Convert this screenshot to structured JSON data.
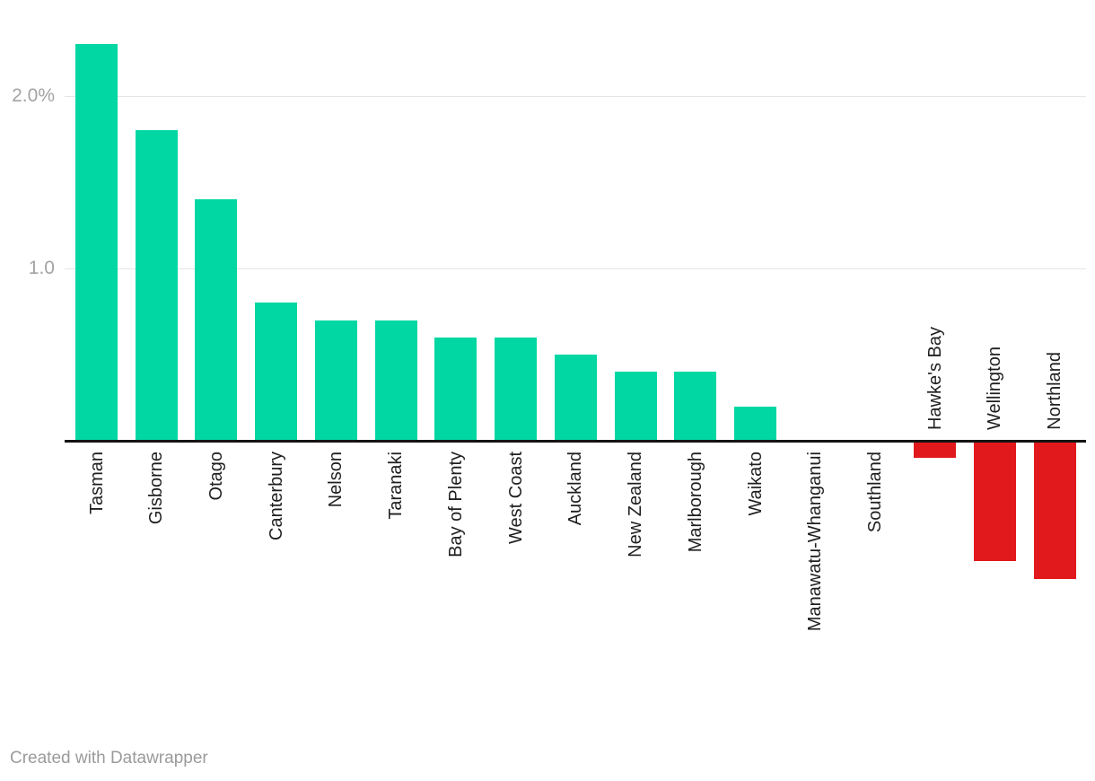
{
  "chart_data": {
    "type": "bar",
    "title": "",
    "categories": [
      "Tasman",
      "Gisborne",
      "Otago",
      "Canterbury",
      "Nelson",
      "Taranaki",
      "Bay of Plenty",
      "West Coast",
      "Auckland",
      "New Zealand",
      "Marlborough",
      "Waikato",
      "Manawatu-Whanganui",
      "Southland",
      "Hawke's Bay",
      "Wellington",
      "Northland"
    ],
    "values": [
      2.3,
      1.8,
      1.4,
      0.8,
      0.7,
      0.7,
      0.6,
      0.6,
      0.5,
      0.4,
      0.4,
      0.2,
      0.0,
      0.0,
      -0.1,
      -0.7,
      -0.8
    ],
    "unit": "%",
    "xlabel": "",
    "ylabel": "",
    "ylim": [
      -0.9,
      2.35
    ],
    "yticks": [
      {
        "value": 2.0,
        "label": "2.0%"
      },
      {
        "value": 1.0,
        "label": "1.0"
      }
    ],
    "grid": true,
    "legend": "none",
    "positive_color": "#00d7a3",
    "negative_color": "#e2191c"
  },
  "colors": {
    "positive_bar": "#00d7a3",
    "negative_bar": "#e2191c",
    "axis": "#141414",
    "gridline": "#e5e5e5",
    "tick_text": "#a3a3a3",
    "label_text": "#1f1f1f",
    "footer_text": "#9b9b9b"
  },
  "footer": {
    "credit": "Created with Datawrapper"
  }
}
